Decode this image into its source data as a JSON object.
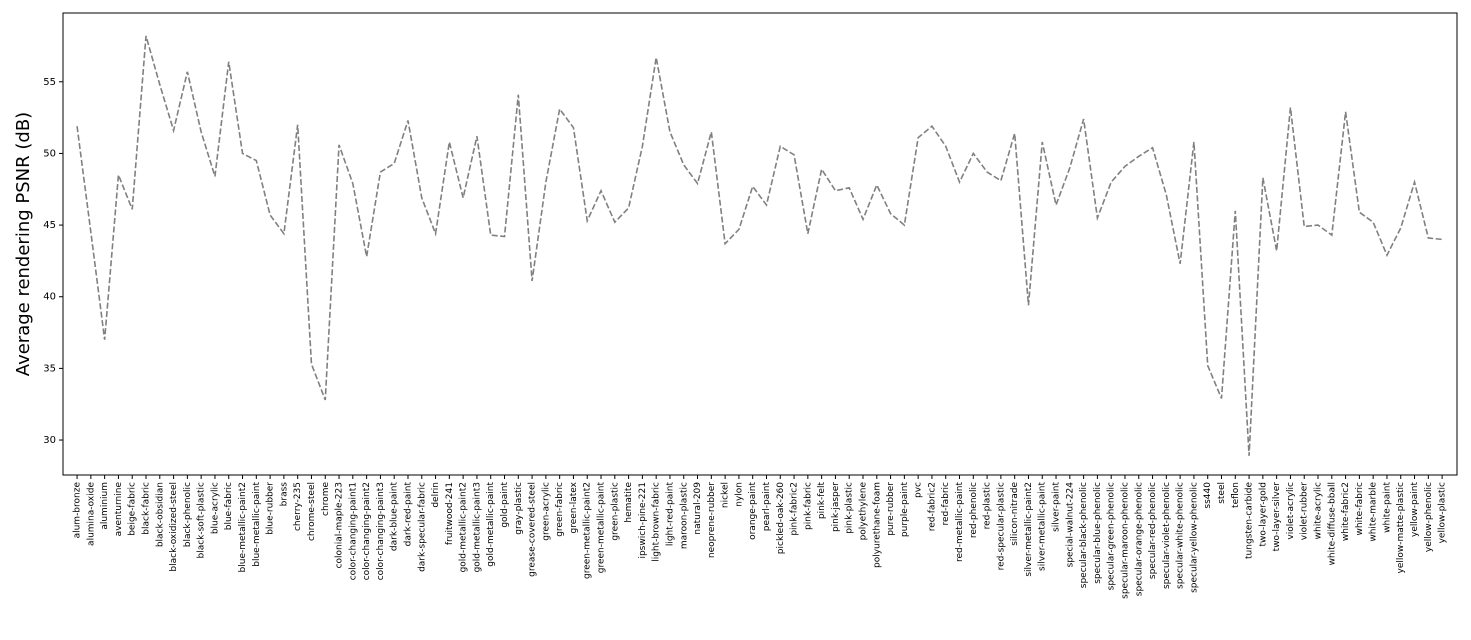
{
  "chart_data": {
    "type": "line",
    "ylabel": "Average rendering PSNR (dB)",
    "color": "#808080",
    "line_style": "dashed",
    "categories": [
      "alum-bronze",
      "alumina-oxide",
      "aluminium",
      "aventurnine",
      "beige-fabric",
      "black-fabric",
      "black-obsidian",
      "black-oxidized-steel",
      "black-phenolic",
      "black-soft-plastic",
      "blue-acrylic",
      "blue-fabric",
      "blue-metallic-paint2",
      "blue-metallic-paint",
      "blue-rubber",
      "brass",
      "cherry-235",
      "chrome-steel",
      "chrome",
      "colonial-maple-223",
      "color-changing-paint1",
      "color-changing-paint2",
      "color-changing-paint3",
      "dark-blue-paint",
      "dark-red-paint",
      "dark-specular-fabric",
      "delrin",
      "fruitwood-241",
      "gold-metallic-paint2",
      "gold-metallic-paint3",
      "gold-metallic-paint",
      "gold-paint",
      "gray-plastic",
      "grease-covered-steel",
      "green-acrylic",
      "green-fabric",
      "green-latex",
      "green-metallic-paint2",
      "green-metallic-paint",
      "green-plastic",
      "hematite",
      "ipswich-pine-221",
      "light-brown-fabric",
      "light-red-paint",
      "maroon-plastic",
      "natural-209",
      "neoprene-rubber",
      "nickel",
      "nylon",
      "orange-paint",
      "pearl-paint",
      "pickled-oak-260",
      "pink-fabric2",
      "pink-fabric",
      "pink-felt",
      "pink-jasper",
      "pink-plastic",
      "polyethylene",
      "polyurethane-foam",
      "pure-rubber",
      "purple-paint",
      "pvc",
      "red-fabric2",
      "red-fabric",
      "red-metallic-paint",
      "red-phenolic",
      "red-plastic",
      "red-specular-plastic",
      "silicon-nitrade",
      "silver-metallic-paint2",
      "silver-metallic-paint",
      "silver-paint",
      "special-walnut-224",
      "specular-black-phenolic",
      "specular-blue-phenolic",
      "specular-green-phenolic",
      "specular-maroon-phenolic",
      "specular-orange-phenolic",
      "specular-red-phenolic",
      "specular-violet-phenolic",
      "specular-white-phenolic",
      "specular-yellow-phenolic",
      "ss440",
      "steel",
      "teflon",
      "tungsten-carbide",
      "two-layer-gold",
      "two-layer-silver",
      "violet-acrylic",
      "violet-rubber",
      "white-acrylic",
      "white-diffuse-bball",
      "white-fabric2",
      "white-fabric",
      "white-marble",
      "white-paint",
      "yellow-matte-plastic",
      "yellow-paint",
      "yellow-phenolic",
      "yellow-plastic"
    ],
    "values": [
      51.9,
      44.5,
      37.0,
      48.5,
      46.1,
      58.2,
      54.8,
      51.6,
      55.7,
      51.5,
      48.4,
      56.4,
      50.0,
      49.5,
      45.7,
      44.4,
      52.0,
      35.3,
      32.8,
      50.6,
      47.9,
      42.8,
      48.7,
      49.3,
      52.3,
      46.9,
      44.4,
      50.8,
      46.9,
      51.2,
      44.3,
      44.2,
      54.1,
      41.1,
      48.0,
      53.1,
      51.8,
      45.3,
      47.4,
      45.2,
      46.2,
      50.5,
      56.7,
      51.5,
      49.2,
      47.9,
      51.5,
      43.7,
      44.7,
      47.7,
      46.4,
      50.5,
      49.9,
      44.4,
      48.9,
      47.4,
      47.6,
      45.4,
      47.8,
      45.8,
      45.0,
      51.1,
      51.9,
      50.5,
      48.0,
      50.0,
      48.7,
      48.1,
      51.4,
      39.4,
      50.8,
      46.4,
      49.0,
      52.4,
      45.5,
      48.0,
      49.1,
      49.8,
      50.4,
      47.1,
      42.3,
      50.8,
      35.2,
      32.9,
      46.0,
      28.9,
      48.3,
      43.2,
      53.2,
      44.9,
      45.0,
      44.3,
      52.9,
      45.9,
      45.2,
      42.9,
      44.8,
      48.0,
      44.1,
      44.0
    ],
    "ylim": [
      27.56,
      59.8
    ],
    "yticks": [
      30,
      35,
      40,
      45,
      50,
      55
    ]
  }
}
